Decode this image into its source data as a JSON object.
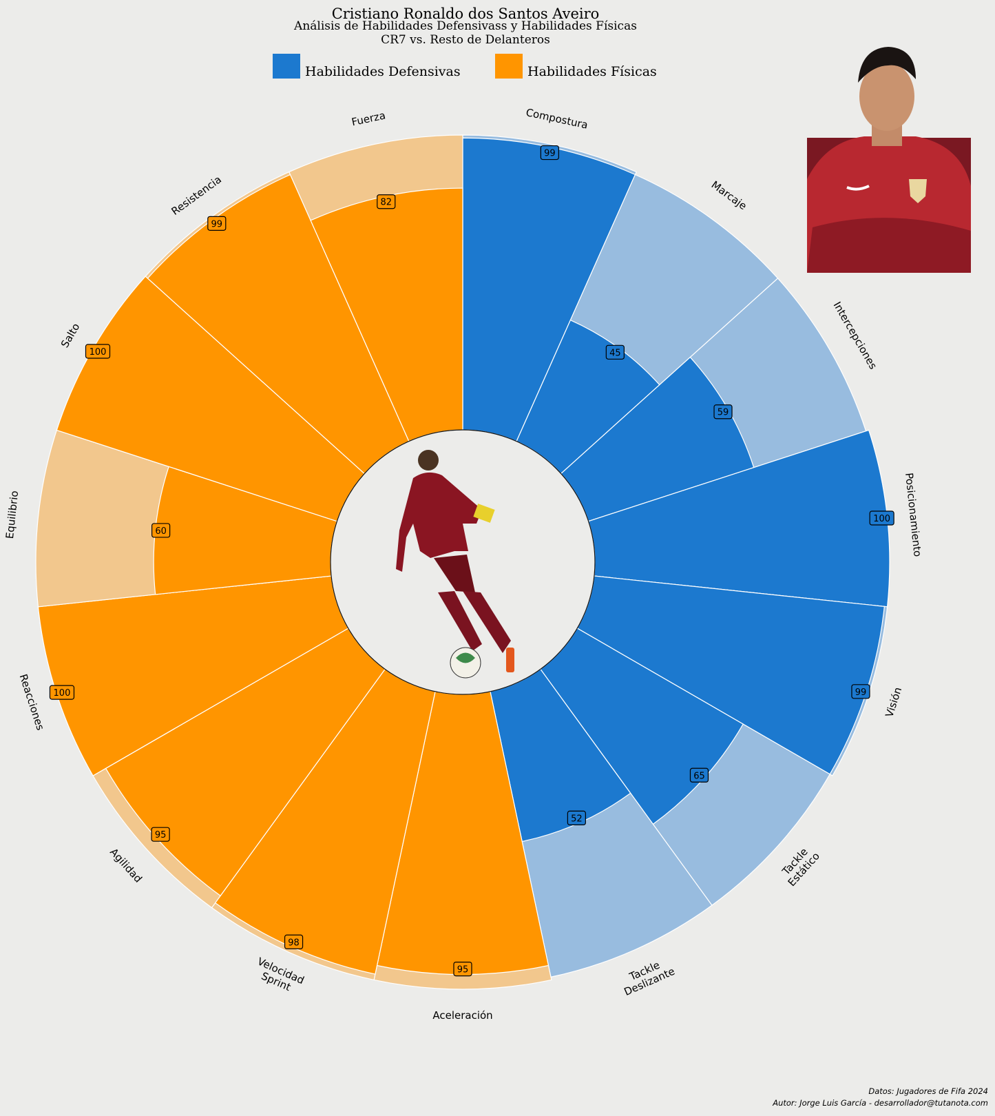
{
  "chart_data": {
    "type": "radial-bar",
    "title": "Cristiano Ronaldo dos Santos Aveiro",
    "subtitle": "Análisis de Habilidades Defensivass y Habilidades Físicas",
    "subtitle2": "CR7 vs. Resto de Delanteros",
    "legend": [
      {
        "name": "Habilidades Defensivas",
        "color": "#1c79cf"
      },
      {
        "name": "Habilidades Físicas",
        "color": "#ff9500"
      }
    ],
    "background_colors": {
      "Habilidades Defensivas": "#98bcdf",
      "Habilidades Físicas": "#f2c78d"
    },
    "max_value": 100,
    "categories": [
      {
        "label": [
          "Compostura"
        ],
        "group": "Habilidades Defensivas",
        "value": 99,
        "reference": 100
      },
      {
        "label": [
          "Marcaje"
        ],
        "group": "Habilidades Defensivas",
        "value": 45,
        "reference": 99
      },
      {
        "label": [
          "Intercepciones"
        ],
        "group": "Habilidades Defensivas",
        "value": 59,
        "reference": 99
      },
      {
        "label": [
          "Posicionamiento"
        ],
        "group": "Habilidades Defensivas",
        "value": 100,
        "reference": 100
      },
      {
        "label": [
          "Visión"
        ],
        "group": "Habilidades Defensivas",
        "value": 99,
        "reference": 100
      },
      {
        "label": [
          "Tackle",
          "Estático"
        ],
        "group": "Habilidades Defensivas",
        "value": 65,
        "reference": 99
      },
      {
        "label": [
          "Tackle",
          "Deslizante"
        ],
        "group": "Habilidades Defensivas",
        "value": 52,
        "reference": 99
      },
      {
        "label": [
          "Aceleración"
        ],
        "group": "Habilidades Físicas",
        "value": 95,
        "reference": 100
      },
      {
        "label": [
          "Velocidad",
          "Sprint"
        ],
        "group": "Habilidades Físicas",
        "value": 98,
        "reference": 100
      },
      {
        "label": [
          "Agilidad"
        ],
        "group": "Habilidades Físicas",
        "value": 95,
        "reference": 100
      },
      {
        "label": [
          "Reacciones"
        ],
        "group": "Habilidades Físicas",
        "value": 100,
        "reference": 100
      },
      {
        "label": [
          "Equilibrio"
        ],
        "group": "Habilidades Físicas",
        "value": 60,
        "reference": 100
      },
      {
        "label": [
          "Salto"
        ],
        "group": "Habilidades Físicas",
        "value": 100,
        "reference": 100
      },
      {
        "label": [
          "Resistencia"
        ],
        "group": "Habilidades Físicas",
        "value": 99,
        "reference": 100
      },
      {
        "label": [
          "Fuerza"
        ],
        "group": "Habilidades Físicas",
        "value": 82,
        "reference": 100
      }
    ]
  },
  "footer": {
    "source": "Datos: Jugadores de Fifa 2024",
    "author": "Autor: Jorge Luis García - desarrollador@tutanota.com"
  },
  "images": {
    "center": "player-action-photo",
    "corner": "player-portrait-photo"
  }
}
